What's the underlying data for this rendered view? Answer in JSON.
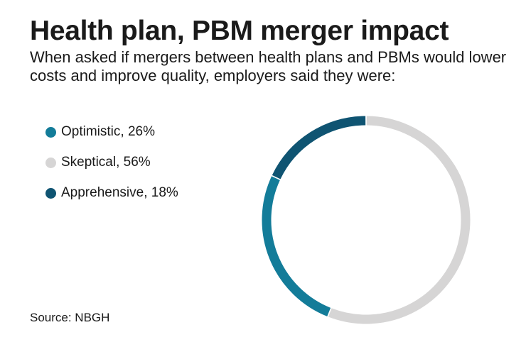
{
  "title": "Health plan, PBM merger impact",
  "subtitle": "When asked if mergers between health plans and PBMs would lower costs and improve quality, employers said they were:",
  "source": "Source: NBGH",
  "chart_data": {
    "type": "pie",
    "donut": true,
    "categories": [
      "Optimistic",
      "Skeptical",
      "Apprehensive"
    ],
    "values": [
      26,
      56,
      18
    ],
    "unit": "%",
    "colors": [
      "#137c99",
      "#d6d5d5",
      "#0f5472"
    ],
    "legend_labels": [
      "Optimistic, 26%",
      "Skeptical, 56%",
      "Apprehensive, 18%"
    ],
    "legend_position": "left",
    "segment_order": [
      "Skeptical",
      "Optimistic",
      "Apprehensive"
    ],
    "start": "top",
    "direction": "clockwise"
  }
}
